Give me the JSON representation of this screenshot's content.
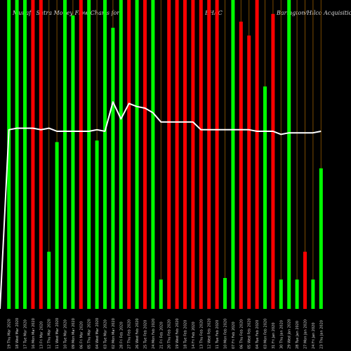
{
  "header": {
    "left": "Munafa Sutra Money Flow Charts for",
    "middle": "BHAC",
    "right": "Barington/Hilco Acquisition"
  },
  "chart_data": {
    "type": "bar",
    "title": "Munafa Sutra Money Flow Charts for BHAC Barington/Hilco Acquisition",
    "categories": [
      "19 Thu Mar 2020",
      "18 Wed Mar 2020",
      "17 Tue Mar 2020",
      "16 Mon Mar 2020",
      "13 Fri Mar 2020",
      "12 Thu Mar 2020",
      "11 Wed Mar 2020",
      "10 Tue Mar 2020",
      "09 Mon Mar 2020",
      "06 Fri Mar 2020",
      "05 Thu Mar 2020",
      "04 Wed Mar 2020",
      "03 Tue Mar 2020",
      "02 Mon Mar 2020",
      "28 Fri Feb 2020",
      "27 Thu Feb 2020",
      "26 Wed Feb 2020",
      "25 Tue Feb 2020",
      "24 Mon Feb 2020",
      "21 Fri Feb 2020",
      "20 Thu Feb 2020",
      "19 Wed Feb 2020",
      "18 Tue Feb 2020",
      "14 Fri Feb 2020",
      "13 Thu Feb 2020",
      "12 Wed Feb 2020",
      "11 Tue Feb 2020",
      "10 Mon Feb 2020",
      "07 Fri Feb 2020",
      "06 Thu Feb 2020",
      "05 Wed Feb 2020",
      "04 Tue Feb 2020",
      "03 Mon Feb 2020",
      "31 Fri Jan 2020",
      "30 Thu Jan 2020",
      "29 Wed Jan 2020",
      "28 Tue Jan 2020",
      "27 Mon Jan 2020",
      "24 Fri Jan 2020",
      "23 Thu Jan 2020"
    ],
    "bars": [
      {
        "height": 100,
        "color": "green"
      },
      {
        "height": 100,
        "color": "green"
      },
      {
        "height": 100,
        "color": "green"
      },
      {
        "height": 100,
        "color": "red"
      },
      {
        "height": 100,
        "color": "red"
      },
      {
        "height": 18.5,
        "color": "green"
      },
      {
        "height": 54,
        "color": "green"
      },
      {
        "height": 100,
        "color": "green"
      },
      {
        "height": 95,
        "color": "green"
      },
      {
        "height": 100,
        "color": "red"
      },
      {
        "height": 100,
        "color": "green"
      },
      {
        "height": 54.5,
        "color": "green"
      },
      {
        "height": 100,
        "color": "green"
      },
      {
        "height": 91,
        "color": "green"
      },
      {
        "height": 100,
        "color": "green"
      },
      {
        "height": 100,
        "color": "red"
      },
      {
        "height": 100,
        "color": "green"
      },
      {
        "height": 100,
        "color": "red"
      },
      {
        "height": 100,
        "color": "green"
      },
      {
        "height": 9.5,
        "color": "green"
      },
      {
        "height": 100,
        "color": "red"
      },
      {
        "height": 100,
        "color": "red"
      },
      {
        "height": 100,
        "color": "red"
      },
      {
        "height": 100,
        "color": "red"
      },
      {
        "height": 100,
        "color": "red"
      },
      {
        "height": 100,
        "color": "red"
      },
      {
        "height": 100,
        "color": "red"
      },
      {
        "height": 10,
        "color": "green"
      },
      {
        "height": 100,
        "color": "green"
      },
      {
        "height": 93,
        "color": "red"
      },
      {
        "height": 88.5,
        "color": "red"
      },
      {
        "height": 100,
        "color": "red"
      },
      {
        "height": 72,
        "color": "green"
      },
      {
        "height": 95.5,
        "color": "red"
      },
      {
        "height": 9.5,
        "color": "green"
      },
      {
        "height": 100,
        "color": "green"
      },
      {
        "height": 9.5,
        "color": "green"
      },
      {
        "height": 18.5,
        "color": "red"
      },
      {
        "height": 9.5,
        "color": "green"
      },
      {
        "height": 45.5,
        "color": "green"
      }
    ],
    "price_line": [
      58,
      58.5,
      58.5,
      58.5,
      58,
      58.5,
      57.5,
      57.5,
      57.5,
      57.5,
      57.5,
      58,
      57.5,
      67,
      61.5,
      66.5,
      65.5,
      65,
      63.5,
      60.5,
      60.5,
      60.5,
      60.5,
      60.5,
      58,
      58,
      58,
      58,
      58,
      58,
      58,
      57.5,
      57.5,
      57.5,
      56.5,
      57,
      57,
      57,
      57,
      57.5
    ],
    "ylim": [
      0,
      100
    ],
    "colors": {
      "green": "#00ff00",
      "red": "#ff0000",
      "line": "#ffffff",
      "grid": "#7a4a00",
      "background": "#000000"
    },
    "grid": true
  }
}
